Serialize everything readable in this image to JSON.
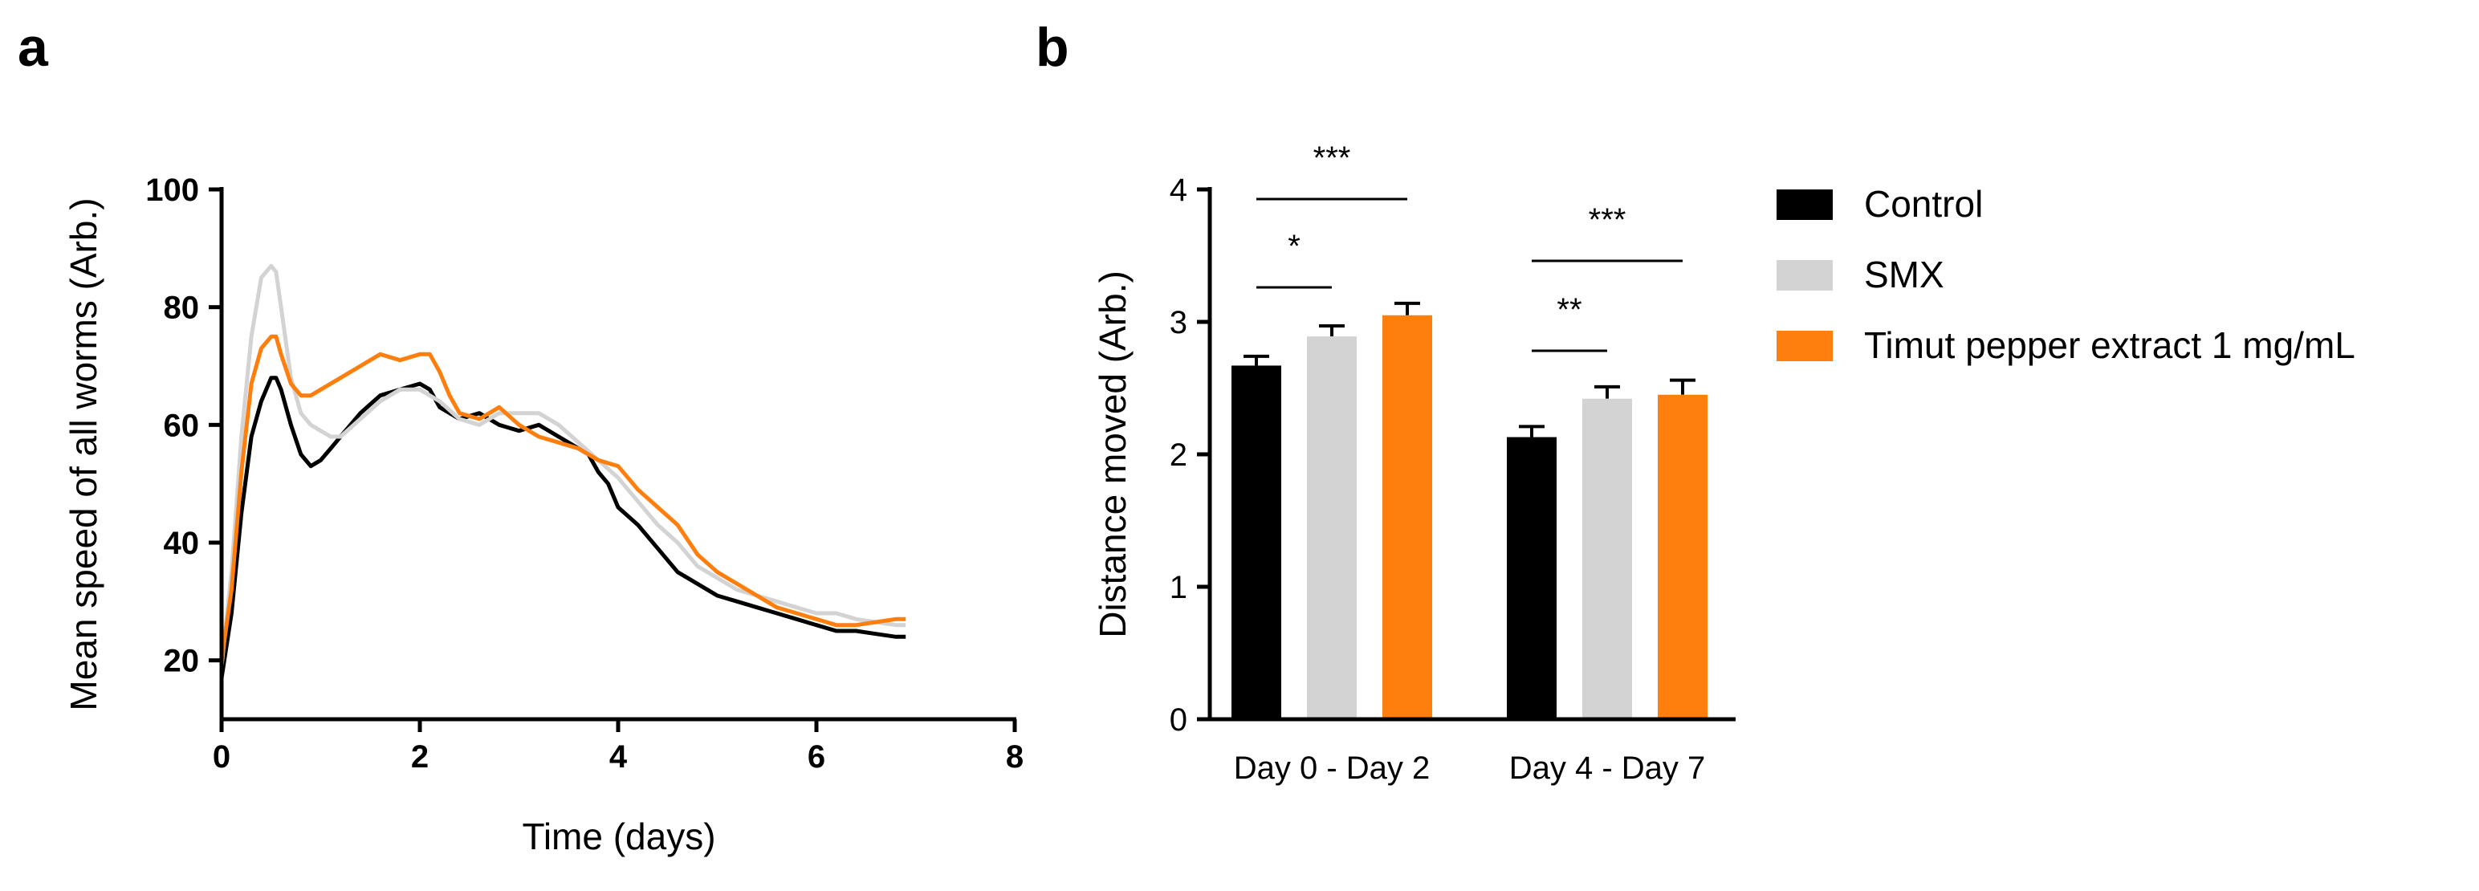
{
  "panel_labels": {
    "a": "a",
    "b": "b"
  },
  "colors": {
    "control": "#000000",
    "smx": "#d3d3d3",
    "timut": "#ff7f0e"
  },
  "chart_data": [
    {
      "type": "line",
      "panel": "a",
      "xlabel": "Time (days)",
      "ylabel": "Mean speed of all worms (Arb.)",
      "xlim": [
        0,
        8
      ],
      "ylim": [
        10,
        100
      ],
      "x_ticks": [
        0,
        2,
        4,
        6,
        8
      ],
      "y_ticks": [
        20,
        40,
        60,
        80,
        100
      ],
      "grid": false,
      "series": [
        {
          "name": "Control",
          "color": "#000000",
          "x": [
            0,
            0.1,
            0.2,
            0.3,
            0.4,
            0.5,
            0.55,
            0.6,
            0.7,
            0.8,
            0.9,
            1.0,
            1.1,
            1.2,
            1.4,
            1.6,
            1.8,
            2.0,
            2.1,
            2.2,
            2.4,
            2.6,
            2.8,
            3.0,
            3.2,
            3.4,
            3.6,
            3.7,
            3.8,
            3.9,
            4.0,
            4.2,
            4.4,
            4.6,
            4.8,
            5.0,
            5.2,
            5.4,
            5.6,
            5.8,
            6.0,
            6.2,
            6.4,
            6.6,
            6.8,
            6.9
          ],
          "y": [
            17,
            28,
            45,
            58,
            64,
            68,
            68,
            66,
            60,
            55,
            53,
            54,
            56,
            58,
            62,
            65,
            66,
            67,
            66,
            63,
            61,
            62,
            60,
            59,
            60,
            58,
            56,
            55,
            52,
            50,
            46,
            43,
            39,
            35,
            33,
            31,
            30,
            29,
            28,
            27,
            26,
            25,
            25,
            24.5,
            24,
            24
          ]
        },
        {
          "name": "SMX",
          "color": "#d3d3d3",
          "x": [
            0,
            0.1,
            0.2,
            0.3,
            0.4,
            0.5,
            0.55,
            0.6,
            0.7,
            0.8,
            0.9,
            1.0,
            1.1,
            1.2,
            1.4,
            1.6,
            1.8,
            2.0,
            2.1,
            2.2,
            2.4,
            2.6,
            2.8,
            3.0,
            3.2,
            3.4,
            3.6,
            3.8,
            4.0,
            4.2,
            4.4,
            4.6,
            4.8,
            5.0,
            5.2,
            5.4,
            5.6,
            5.8,
            6.0,
            6.2,
            6.4,
            6.6,
            6.8,
            6.9
          ],
          "y": [
            19,
            35,
            58,
            75,
            85,
            87,
            86,
            80,
            68,
            62,
            60,
            59,
            58,
            58,
            61,
            64,
            66,
            66,
            65,
            64,
            61,
            60,
            62,
            62,
            62,
            60,
            57,
            54,
            51,
            47,
            43,
            40,
            36,
            34,
            32,
            31,
            30,
            29,
            28,
            28,
            27,
            26.5,
            26,
            26
          ]
        },
        {
          "name": "Timut pepper extract 1 mg/mL",
          "color": "#ff7f0e",
          "x": [
            0,
            0.1,
            0.2,
            0.3,
            0.4,
            0.5,
            0.55,
            0.6,
            0.7,
            0.8,
            0.9,
            1.0,
            1.2,
            1.4,
            1.6,
            1.8,
            2.0,
            2.1,
            2.2,
            2.3,
            2.4,
            2.6,
            2.8,
            3.0,
            3.2,
            3.4,
            3.6,
            3.8,
            4.0,
            4.2,
            4.4,
            4.6,
            4.8,
            5.0,
            5.2,
            5.4,
            5.6,
            5.8,
            6.0,
            6.2,
            6.4,
            6.6,
            6.8,
            6.9
          ],
          "y": [
            20,
            32,
            52,
            67,
            73,
            75,
            75,
            72,
            67,
            65,
            65,
            66,
            68,
            70,
            72,
            71,
            72,
            72,
            69,
            65,
            62,
            61,
            63,
            60,
            58,
            57,
            56,
            54,
            53,
            49,
            46,
            43,
            38,
            35,
            33,
            31,
            29,
            28,
            27,
            26,
            26,
            26.5,
            27,
            27
          ]
        }
      ]
    },
    {
      "type": "bar",
      "panel": "b",
      "ylabel": "Distance moved (Arb.)",
      "ylim": [
        0,
        4
      ],
      "y_ticks": [
        0,
        1,
        2,
        3,
        4
      ],
      "categories": [
        "Day 0 - Day 2",
        "Day 4 - Day 7"
      ],
      "legend_position": "right",
      "series": [
        {
          "name": "Control",
          "color": "#000000",
          "values": [
            2.67,
            2.13
          ],
          "errors": [
            0.07,
            0.08
          ]
        },
        {
          "name": "SMX",
          "color": "#d3d3d3",
          "values": [
            2.89,
            2.42
          ],
          "errors": [
            0.08,
            0.09
          ]
        },
        {
          "name": "Timut pepper extract 1 mg/mL",
          "color": "#ff7f0e",
          "values": [
            3.05,
            2.45
          ],
          "errors": [
            0.09,
            0.11
          ]
        }
      ],
      "significance": [
        {
          "category": 0,
          "from_series": 0,
          "to_series": 1,
          "label": "*"
        },
        {
          "category": 0,
          "from_series": 0,
          "to_series": 2,
          "label": "***"
        },
        {
          "category": 1,
          "from_series": 0,
          "to_series": 1,
          "label": "**"
        },
        {
          "category": 1,
          "from_series": 0,
          "to_series": 2,
          "label": "***"
        }
      ]
    }
  ]
}
